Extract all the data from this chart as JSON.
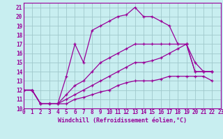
{
  "xlabel": "Windchill (Refroidissement éolien,°C)",
  "background_color": "#c8eef0",
  "grid_color": "#a0c8cc",
  "line_color": "#990099",
  "series": [
    [
      12,
      12,
      10.5,
      10.5,
      10.5,
      13.5,
      17,
      15,
      18.5,
      19,
      19.5,
      20,
      20.2,
      21,
      20,
      20,
      19.5,
      19,
      17,
      17,
      14,
      14,
      14
    ],
    [
      12,
      12,
      10.5,
      10.5,
      10.5,
      11.5,
      12.5,
      13,
      14,
      15,
      15.5,
      16,
      16.5,
      17,
      17,
      17,
      17,
      17,
      17,
      17,
      15,
      14,
      14
    ],
    [
      12,
      12,
      10.5,
      10.5,
      10.5,
      11,
      11.5,
      12,
      12.5,
      13,
      13.5,
      14,
      14.5,
      15,
      15,
      15.2,
      15.5,
      16,
      16.5,
      17,
      14,
      14,
      14
    ],
    [
      12,
      12,
      10.5,
      10.5,
      10.5,
      10.5,
      11,
      11.2,
      11.5,
      11.8,
      12,
      12.5,
      12.8,
      13,
      13,
      13,
      13.2,
      13.5,
      13.5,
      13.5,
      13.5,
      13.5,
      13
    ]
  ],
  "xlim": [
    0,
    23
  ],
  "ylim": [
    10,
    21.5
  ],
  "yticks": [
    10,
    11,
    12,
    13,
    14,
    15,
    16,
    17,
    18,
    19,
    20,
    21
  ],
  "xticks": [
    0,
    1,
    2,
    3,
    4,
    5,
    6,
    7,
    8,
    9,
    10,
    11,
    12,
    13,
    14,
    15,
    16,
    17,
    18,
    19,
    20,
    21,
    22,
    23
  ],
  "tick_fontsize": 5.5,
  "xlabel_fontsize": 6.0
}
